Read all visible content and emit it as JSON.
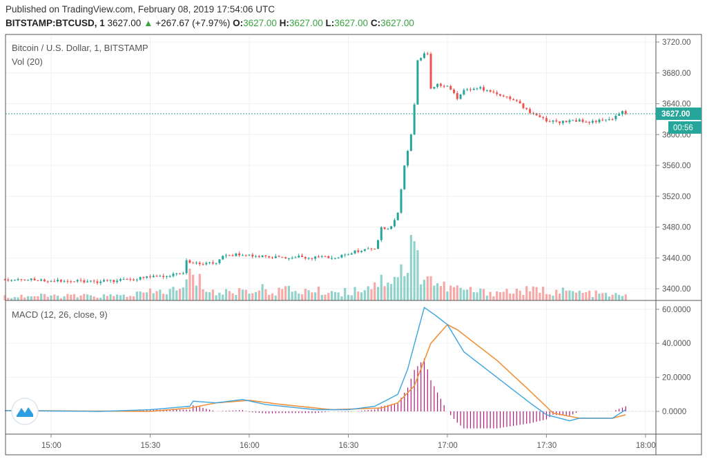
{
  "header": {
    "published": "Published on TradingView.com, February 08, 2019 17:54:06 UTC",
    "symbol": "BITSTAMP:BTCUSD, 1",
    "last": "3627.00",
    "change": "+267.67 (+7.97%)",
    "o_label": "O:",
    "o": "3627.00",
    "h_label": "H:",
    "h": "3627.00",
    "l_label": "L:",
    "l": "3627.00",
    "c_label": "C:",
    "c": "3627.00"
  },
  "panes": {
    "main_title": "Bitcoin / U.S. Dollar, 1, BITSTAMP",
    "volume_title": "Vol (20)",
    "macd_title": "MACD (12, 26, close, 9)"
  },
  "price_axis": {
    "ticks": [
      "3720.00",
      "3680.00",
      "3640.00",
      "3600.00",
      "3560.00",
      "3520.00",
      "3480.00",
      "3440.00",
      "3400.00"
    ],
    "last_price_label": "3627.00",
    "countdown": "00:56"
  },
  "macd_axis": {
    "ticks": [
      "60.0000",
      "40.0000",
      "20.0000",
      "0.0000"
    ]
  },
  "time_axis": {
    "ticks": [
      "15:00",
      "15:30",
      "16:00",
      "16:30",
      "17:00",
      "17:30",
      "18:00"
    ]
  },
  "colors": {
    "up": "#26a69a",
    "down": "#ef5350",
    "macd": "#3ba3e0",
    "signal": "#f0913a",
    "hist": "#b0177c",
    "last": "#26a69a"
  },
  "chart_data": {
    "type": "candlestick",
    "interval_minutes": 1,
    "price_range": [
      3390,
      3725
    ],
    "macd_range": [
      -12,
      64
    ],
    "price_path": [
      [
        "14:46",
        3412
      ],
      [
        "14:50",
        3412
      ],
      [
        "15:00",
        3411
      ],
      [
        "15:10",
        3409
      ],
      [
        "15:20",
        3410
      ],
      [
        "15:25",
        3413
      ],
      [
        "15:35",
        3417
      ],
      [
        "15:40",
        3420
      ],
      [
        "15:41",
        3435
      ],
      [
        "15:43",
        3433
      ],
      [
        "15:50",
        3433
      ],
      [
        "15:52",
        3442
      ],
      [
        "15:58",
        3445
      ],
      [
        "16:02",
        3442
      ],
      [
        "16:10",
        3441
      ],
      [
        "16:20",
        3441
      ],
      [
        "16:25",
        3440
      ],
      [
        "16:30",
        3445
      ],
      [
        "16:35",
        3452
      ],
      [
        "16:38",
        3452
      ],
      [
        "16:40",
        3478
      ],
      [
        "16:43",
        3480
      ],
      [
        "16:45",
        3500
      ],
      [
        "16:47",
        3560
      ],
      [
        "16:49",
        3600
      ],
      [
        "16:50",
        3640
      ],
      [
        "16:51",
        3695
      ],
      [
        "16:53",
        3706
      ],
      [
        "16:54",
        3706
      ],
      [
        "16:55",
        3660
      ],
      [
        "16:57",
        3665
      ],
      [
        "17:00",
        3662
      ],
      [
        "17:03",
        3648
      ],
      [
        "17:05",
        3658
      ],
      [
        "17:10",
        3660
      ],
      [
        "17:15",
        3652
      ],
      [
        "17:20",
        3645
      ],
      [
        "17:25",
        3630
      ],
      [
        "17:30",
        3618
      ],
      [
        "17:35",
        3616
      ],
      [
        "17:40",
        3618
      ],
      [
        "17:45",
        3617
      ],
      [
        "17:50",
        3620
      ],
      [
        "17:53",
        3630
      ],
      [
        "17:54",
        3627
      ]
    ],
    "volume_relative": [
      [
        "14:46",
        8
      ],
      [
        "15:20",
        8
      ],
      [
        "15:40",
        20
      ],
      [
        "15:42",
        45
      ],
      [
        "15:50",
        12
      ],
      [
        "16:00",
        20
      ],
      [
        "16:30",
        15
      ],
      [
        "16:40",
        35
      ],
      [
        "16:48",
        60
      ],
      [
        "16:49",
        100
      ],
      [
        "16:52",
        55
      ],
      [
        "16:58",
        25
      ],
      [
        "17:10",
        15
      ],
      [
        "17:30",
        18
      ],
      [
        "17:54",
        8
      ]
    ],
    "macd": [
      [
        "14:46",
        0.5
      ],
      [
        "15:15",
        0
      ],
      [
        "15:30",
        1
      ],
      [
        "15:42",
        3
      ],
      [
        "15:43",
        6
      ],
      [
        "15:50",
        5
      ],
      [
        "15:58",
        7
      ],
      [
        "16:05",
        4
      ],
      [
        "16:20",
        1
      ],
      [
        "16:30",
        1
      ],
      [
        "16:38",
        3
      ],
      [
        "16:41",
        6
      ],
      [
        "16:45",
        10
      ],
      [
        "16:48",
        25
      ],
      [
        "16:53",
        61
      ],
      [
        "16:56",
        57
      ],
      [
        "17:00",
        51
      ],
      [
        "17:05",
        35
      ],
      [
        "17:15",
        20
      ],
      [
        "17:25",
        5
      ],
      [
        "17:30",
        -2
      ],
      [
        "17:37",
        -5.5
      ],
      [
        "17:40",
        -4
      ],
      [
        "17:50",
        -4
      ],
      [
        "17:54",
        1
      ]
    ],
    "signal": [
      [
        "14:46",
        0.5
      ],
      [
        "15:30",
        0
      ],
      [
        "15:42",
        2
      ],
      [
        "15:50",
        5
      ],
      [
        "16:00",
        6.5
      ],
      [
        "16:10",
        4
      ],
      [
        "16:25",
        1
      ],
      [
        "16:40",
        2
      ],
      [
        "16:45",
        5
      ],
      [
        "16:50",
        15
      ],
      [
        "16:55",
        40
      ],
      [
        "17:00",
        51
      ],
      [
        "17:03",
        48
      ],
      [
        "17:15",
        30
      ],
      [
        "17:25",
        12
      ],
      [
        "17:32",
        -1
      ],
      [
        "17:40",
        -4
      ],
      [
        "17:50",
        -4
      ],
      [
        "17:54",
        -2
      ]
    ]
  }
}
